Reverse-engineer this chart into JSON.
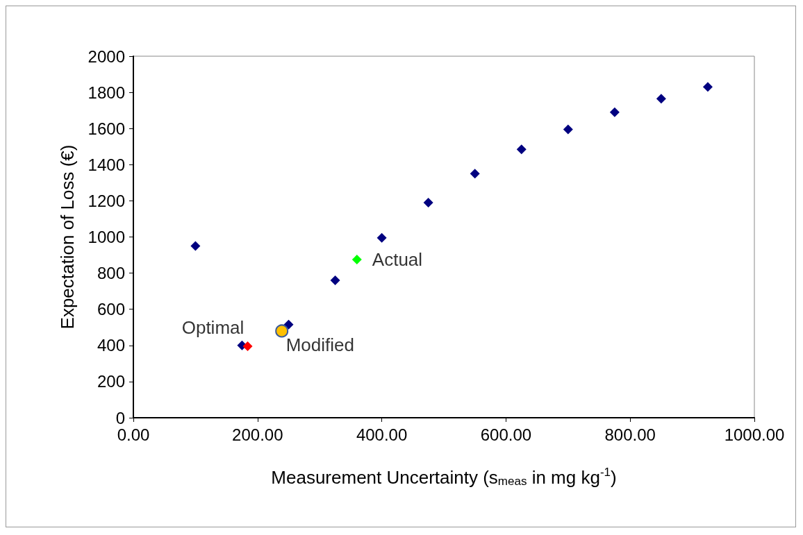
{
  "chart_data": {
    "type": "scatter",
    "xlabel": "Measurement Uncertainty (s$_{meas}$ in mg kg$^{-1}$)",
    "ylabel": "Expectation of Loss (€)",
    "series": [
      {
        "color": "#000080",
        "marker": "diamond",
        "x": [
          100,
          175,
          250,
          325,
          400,
          475,
          550,
          625,
          700,
          775,
          850,
          925
        ],
        "values": [
          950,
          400,
          515,
          760,
          995,
          1190,
          1350,
          1485,
          1595,
          1690,
          1765,
          1830
        ]
      },
      {
        "color": "#00ff00",
        "marker": "diamond",
        "x": [
          360
        ],
        "values": [
          875
        ]
      },
      {
        "color": "#ff0000",
        "marker": "diamond",
        "x": [
          184
        ],
        "values": [
          395
        ]
      },
      {
        "color": "#ffc000",
        "marker": "circle",
        "x": [
          239
        ],
        "values": [
          480
        ]
      }
    ],
    "annotations": [
      {
        "text": "Actual",
        "x": 360,
        "y": 875
      },
      {
        "text": "Optimal",
        "x": 184,
        "y": 395
      },
      {
        "text": "Modified",
        "x": 239,
        "y": 480
      }
    ],
    "xlim": [
      0,
      1000
    ],
    "xticks": [
      {
        "value": 0,
        "label": "0.00"
      },
      {
        "value": 200,
        "label": "200.00"
      },
      {
        "value": 400,
        "label": "400.00"
      },
      {
        "value": 600,
        "label": "600.00"
      },
      {
        "value": 800,
        "label": "800.00"
      },
      {
        "value": 1000,
        "label": "1000.00"
      }
    ],
    "ylim": [
      0,
      2000
    ],
    "yticks": [
      0,
      200,
      400,
      600,
      800,
      1000,
      1200,
      1400,
      1600,
      1800,
      2000
    ],
    "grid": false
  }
}
